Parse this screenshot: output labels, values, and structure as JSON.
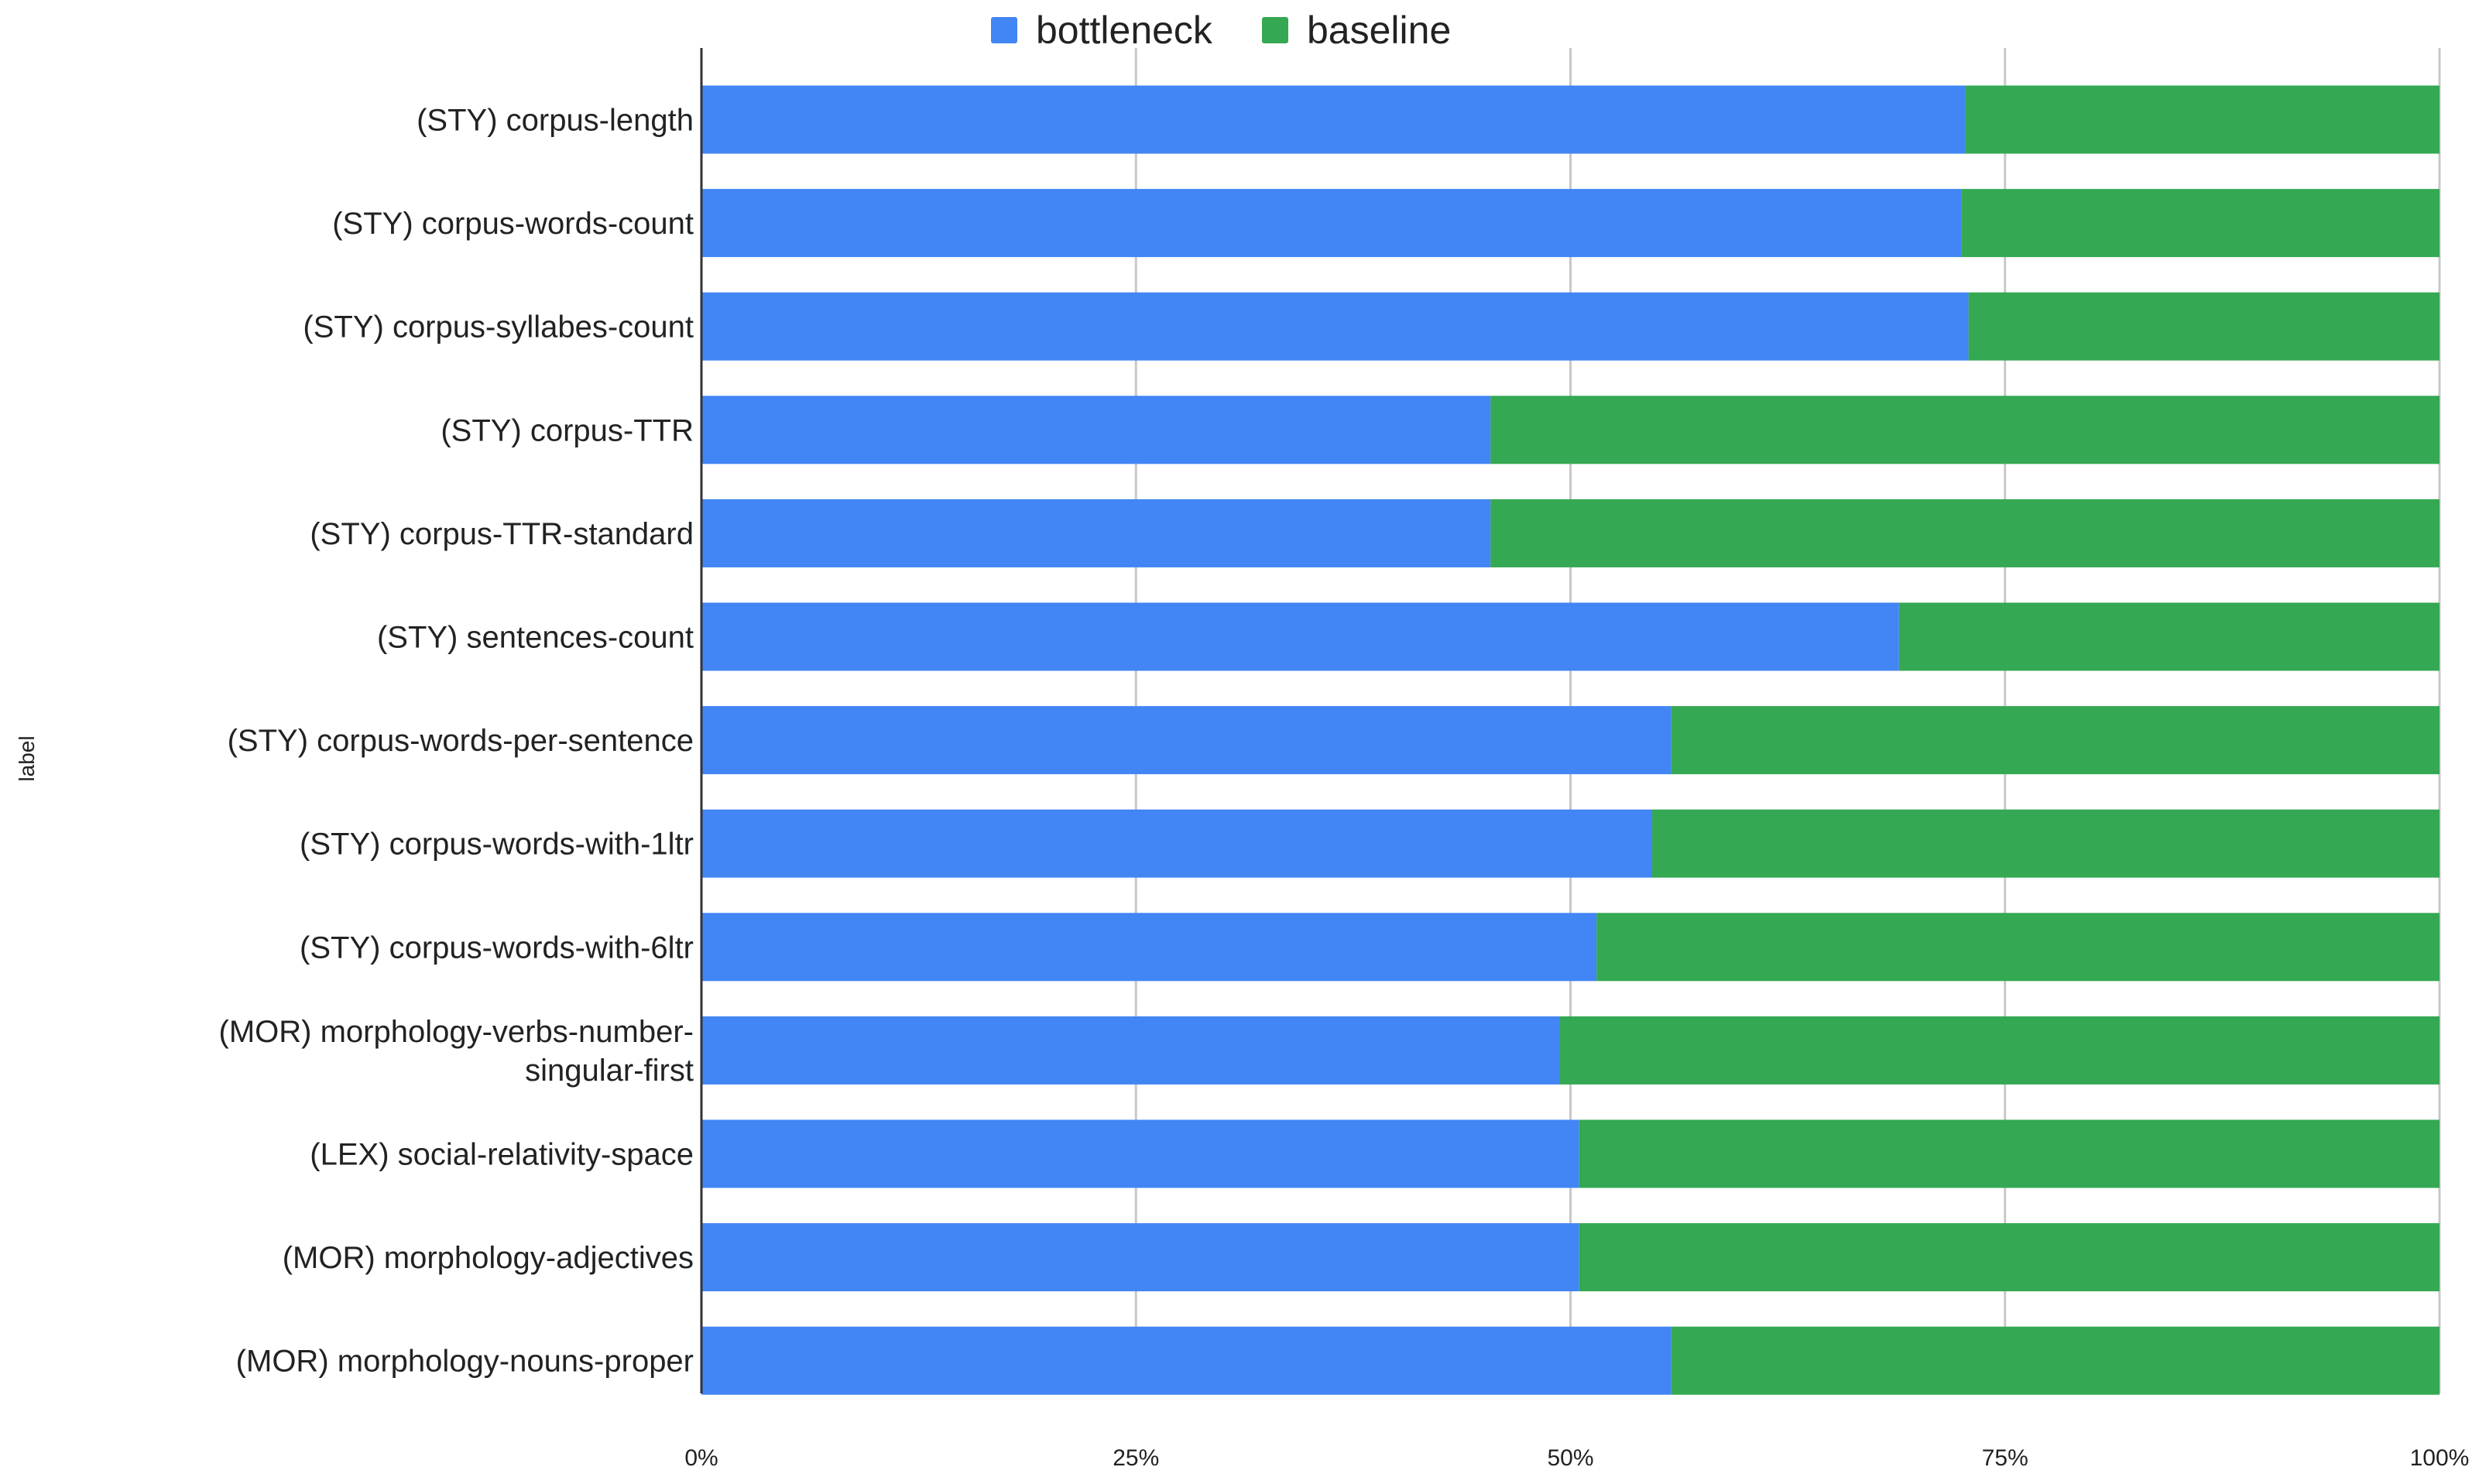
{
  "chart_data": {
    "type": "bar",
    "orientation": "horizontal",
    "stacked": "percent",
    "title": "",
    "xlabel": "",
    "ylabel": "label",
    "xlim": [
      0,
      100
    ],
    "x_ticks": [
      "0%",
      "25%",
      "50%",
      "75%",
      "100%"
    ],
    "grid": true,
    "legend_position": "top",
    "categories": [
      "(STY) corpus-length",
      "(STY) corpus-words-count",
      "(STY) corpus-syllabes-count",
      "(STY) corpus-TTR",
      "(STY) corpus-TTR-standard",
      "(STY) sentences-count",
      "(STY) corpus-words-per-sentence",
      "(STY) corpus-words-with-1ltr",
      "(STY) corpus-words-with-6ltr",
      "(MOR) morphology-verbs-number-singular-first",
      "(LEX) social-relativity-space",
      "(MOR) morphology-adjectives",
      "(MOR) morphology-nouns-proper"
    ],
    "category_lines": [
      [
        "(STY) corpus-length"
      ],
      [
        "(STY) corpus-words-count"
      ],
      [
        "(STY) corpus-syllabes-count"
      ],
      [
        "(STY) corpus-TTR"
      ],
      [
        "(STY) corpus-TTR-standard"
      ],
      [
        "(STY) sentences-count"
      ],
      [
        "(STY) corpus-words-per-sentence"
      ],
      [
        "(STY) corpus-words-with-1ltr"
      ],
      [
        "(STY) corpus-words-with-6ltr"
      ],
      [
        "(MOR) morphology-verbs-number-",
        "singular-first"
      ],
      [
        "(LEX) social-relativity-space"
      ],
      [
        "(MOR) morphology-adjectives"
      ],
      [
        "(MOR) morphology-nouns-proper"
      ]
    ],
    "series": [
      {
        "name": "bottleneck",
        "color": "#4285f4",
        "values": [
          72.7,
          72.5,
          72.9,
          45.4,
          45.4,
          68.9,
          55.8,
          54.7,
          51.5,
          49.4,
          50.5,
          50.5,
          55.8
        ]
      },
      {
        "name": "baseline",
        "color": "#34a853",
        "values": [
          27.3,
          27.5,
          27.1,
          54.6,
          54.6,
          31.1,
          44.2,
          45.3,
          48.5,
          50.6,
          49.5,
          49.5,
          44.2
        ]
      }
    ]
  }
}
